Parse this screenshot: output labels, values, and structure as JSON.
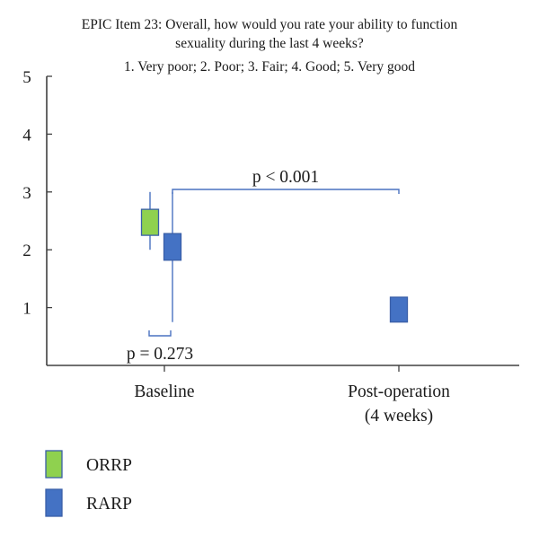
{
  "title_line1": "EPIC Item 23: Overall, how would you rate your ability to function",
  "title_line2": "sexuality during the last 4 weeks?",
  "title_line3": "1. Very poor; 2. Poor; 3. Fair; 4. Good; 5. Very good",
  "colors": {
    "ORRP": "#8fd14f",
    "RARP": "#4472c4",
    "axis": "#404040",
    "bracket": "#4a72c0",
    "whisker": "#4a72c0"
  },
  "chart_data": {
    "type": "box",
    "categories": [
      "Baseline",
      "Post-operation",
      "(4 weeks)"
    ],
    "ylim": [
      0,
      5
    ],
    "yticks": [
      1,
      2,
      3,
      4,
      5
    ],
    "series": [
      {
        "name": "ORRP",
        "values": [
          {
            "category": "Baseline",
            "whisker_low": 2.0,
            "q1": 2.25,
            "q3": 2.7,
            "whisker_high": 3.0
          }
        ]
      },
      {
        "name": "RARP",
        "values": [
          {
            "category": "Baseline",
            "whisker_low": 0.75,
            "q1": 1.82,
            "q3": 2.28,
            "whisker_high": 3.0
          },
          {
            "category": "Post-operation",
            "whisker_low": 0.75,
            "q1": 0.75,
            "q3": 1.18,
            "whisker_high": 1.18
          }
        ]
      }
    ],
    "annotations": [
      {
        "text": "p = 0.273",
        "between": [
          "ORRP Baseline",
          "RARP Baseline"
        ]
      },
      {
        "text": "p < 0.001",
        "between": [
          "RARP Baseline",
          "RARP Post-operation"
        ]
      }
    ],
    "legend": {
      "placement": "bottom-left",
      "entries": [
        "ORRP",
        "RARP"
      ]
    }
  }
}
